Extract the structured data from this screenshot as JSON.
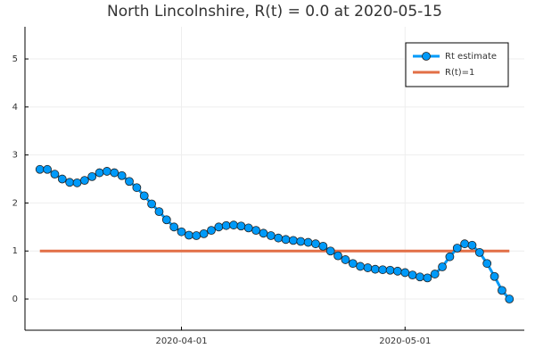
{
  "chart_data": {
    "type": "line",
    "title": "North Lincolnshire, R(t) = 0.0 at 2020-05-15",
    "x": [
      "2020-03-13",
      "2020-03-14",
      "2020-03-15",
      "2020-03-16",
      "2020-03-17",
      "2020-03-18",
      "2020-03-19",
      "2020-03-20",
      "2020-03-21",
      "2020-03-22",
      "2020-03-23",
      "2020-03-24",
      "2020-03-25",
      "2020-03-26",
      "2020-03-27",
      "2020-03-28",
      "2020-03-29",
      "2020-03-30",
      "2020-03-31",
      "2020-04-01",
      "2020-04-02",
      "2020-04-03",
      "2020-04-04",
      "2020-04-05",
      "2020-04-06",
      "2020-04-07",
      "2020-04-08",
      "2020-04-09",
      "2020-04-10",
      "2020-04-11",
      "2020-04-12",
      "2020-04-13",
      "2020-04-14",
      "2020-04-15",
      "2020-04-16",
      "2020-04-17",
      "2020-04-18",
      "2020-04-19",
      "2020-04-20",
      "2020-04-21",
      "2020-04-22",
      "2020-04-23",
      "2020-04-24",
      "2020-04-25",
      "2020-04-26",
      "2020-04-27",
      "2020-04-28",
      "2020-04-29",
      "2020-04-30",
      "2020-05-01",
      "2020-05-02",
      "2020-05-03",
      "2020-05-04",
      "2020-05-05",
      "2020-05-06",
      "2020-05-07",
      "2020-05-08",
      "2020-05-09",
      "2020-05-10",
      "2020-05-11",
      "2020-05-12",
      "2020-05-13",
      "2020-05-14",
      "2020-05-15"
    ],
    "series": [
      {
        "name": "Rt estimate",
        "color": "#009af9",
        "marker": true,
        "values": [
          2.7,
          2.7,
          2.6,
          2.5,
          2.43,
          2.42,
          2.47,
          2.55,
          2.63,
          2.66,
          2.63,
          2.57,
          2.45,
          2.32,
          2.15,
          1.98,
          1.82,
          1.65,
          1.5,
          1.4,
          1.33,
          1.32,
          1.36,
          1.43,
          1.5,
          1.53,
          1.54,
          1.52,
          1.48,
          1.43,
          1.37,
          1.32,
          1.27,
          1.24,
          1.22,
          1.2,
          1.18,
          1.15,
          1.1,
          1.0,
          0.9,
          0.82,
          0.74,
          0.68,
          0.65,
          0.62,
          0.61,
          0.6,
          0.58,
          0.55,
          0.5,
          0.46,
          0.44,
          0.52,
          0.67,
          0.88,
          1.06,
          1.15,
          1.12,
          0.97,
          0.74,
          0.47,
          0.18,
          0.0
        ]
      },
      {
        "name": "R(t)=1",
        "color": "#e26f46",
        "marker": false,
        "values": [
          1,
          1,
          1,
          1,
          1,
          1,
          1,
          1,
          1,
          1,
          1,
          1,
          1,
          1,
          1,
          1,
          1,
          1,
          1,
          1,
          1,
          1,
          1,
          1,
          1,
          1,
          1,
          1,
          1,
          1,
          1,
          1,
          1,
          1,
          1,
          1,
          1,
          1,
          1,
          1,
          1,
          1,
          1,
          1,
          1,
          1,
          1,
          1,
          1,
          1,
          1,
          1,
          1,
          1,
          1,
          1,
          1,
          1,
          1,
          1,
          1,
          1,
          1,
          1
        ]
      }
    ],
    "xlim": [
      "2020-03-11",
      "2020-05-17"
    ],
    "xticks": [
      "2020-04-01",
      "2020-05-01"
    ],
    "ylim": [
      -0.65,
      5.67
    ],
    "yticks": [
      0,
      1,
      2,
      3,
      4,
      5
    ],
    "grid": true,
    "legend": "top-right"
  }
}
